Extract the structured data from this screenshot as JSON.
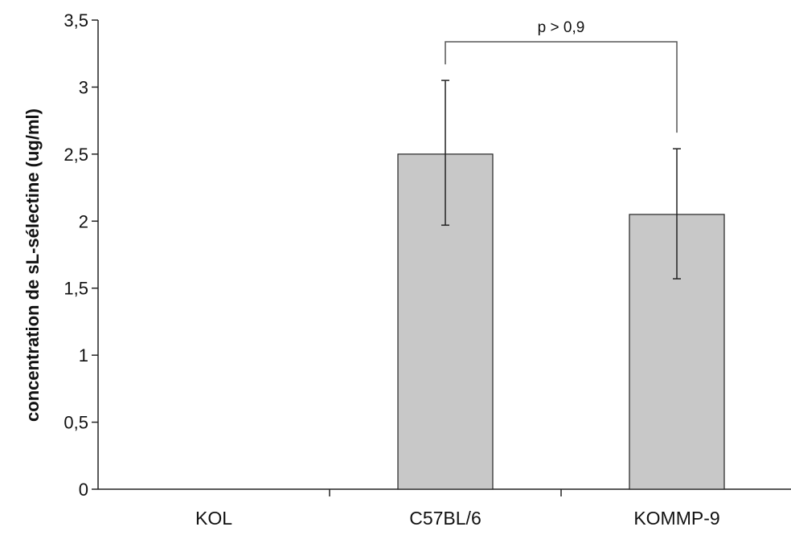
{
  "chart_data": {
    "type": "bar",
    "categories": [
      "KOL",
      "C57BL/6",
      "KOMMP-9"
    ],
    "values": [
      0,
      2.5,
      2.05
    ],
    "error_low": [
      null,
      1.97,
      1.57
    ],
    "error_high": [
      null,
      3.05,
      2.54
    ],
    "title": "",
    "xlabel": "",
    "ylabel": "concentration de sL-sélectine (ug/ml)",
    "ylim": [
      0,
      3.5
    ],
    "yticks": [
      0,
      0.5,
      1,
      1.5,
      2,
      2.5,
      3,
      3.5
    ],
    "ytick_labels": [
      "0",
      "0,5",
      "1",
      "1,5",
      "2",
      "2,5",
      "3",
      "3,5"
    ],
    "grid": false,
    "bar_color": "#c8c8c8",
    "annotation": {
      "text": "p > 0,9",
      "between": [
        "C57BL/6",
        "KOMMP-9"
      ]
    }
  }
}
